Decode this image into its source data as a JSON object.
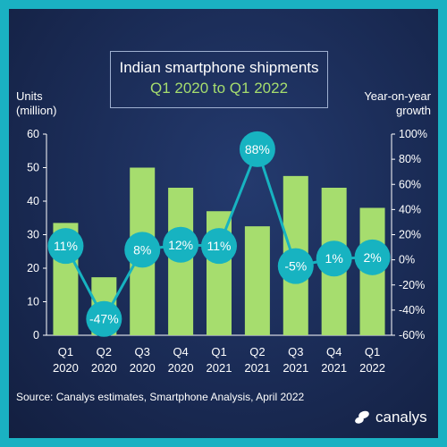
{
  "colors": {
    "background": "#1ab1c2",
    "panel": "#1a2b55",
    "bar": "#a6dd6e",
    "bubble": "#17b3c1",
    "line": "#17b3c1",
    "title_accent": "#a6dd6e"
  },
  "brand": {
    "name": "canalys",
    "logo_icon": "canalys-logo-icon"
  },
  "source": "Source: Canalys estimates, Smartphone Analysis, April 2022",
  "chart_data": {
    "type": "bar",
    "title": "Indian smartphone shipments",
    "subtitle": "Q1 2020 to Q1 2022",
    "ylabel": "Units\n(million)",
    "y2label": "Year-on-year\ngrowth",
    "ylim": [
      0,
      60
    ],
    "y2lim": [
      -60,
      100
    ],
    "yticks": [
      "0",
      "10",
      "20",
      "30",
      "40",
      "50",
      "60"
    ],
    "y2ticks": [
      "-60%",
      "-40%",
      "-20%",
      "0%",
      "20%",
      "40%",
      "60%",
      "80%",
      "100%"
    ],
    "categories": [
      [
        "Q1",
        "2020"
      ],
      [
        "Q2",
        "2020"
      ],
      [
        "Q3",
        "2020"
      ],
      [
        "Q4",
        "2020"
      ],
      [
        "Q1",
        "2021"
      ],
      [
        "Q2",
        "2021"
      ],
      [
        "Q3",
        "2021"
      ],
      [
        "Q4",
        "2021"
      ],
      [
        "Q1",
        "2022"
      ]
    ],
    "series": [
      {
        "kind": "bar",
        "axis": "left",
        "values": [
          33.5,
          17.3,
          50,
          44,
          37,
          32.5,
          47.5,
          44,
          38
        ]
      },
      {
        "kind": "line",
        "axis": "right",
        "values": [
          11,
          -47,
          8,
          12,
          11,
          88,
          -5,
          1,
          2
        ],
        "labels": [
          "11%",
          "-47%",
          "8%",
          "12%",
          "11%",
          "88%",
          "-5%",
          "1%",
          "2%"
        ]
      }
    ],
    "grid": false
  }
}
